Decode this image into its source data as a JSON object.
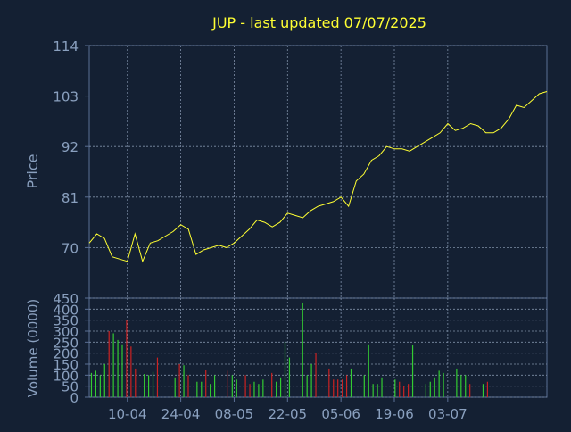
{
  "chart_data": [
    {
      "type": "line",
      "title": "JUP - last updated 07/07/2025",
      "ylabel": "Price",
      "ylim": [
        59,
        114
      ],
      "yticks": [
        70,
        81,
        92,
        103,
        114
      ],
      "grid": true,
      "line_color": "#ffff33",
      "x": [
        0,
        2,
        4,
        6,
        8,
        10,
        12,
        14,
        16,
        18,
        20,
        22,
        24,
        26,
        28,
        30,
        32,
        34,
        36,
        38,
        40,
        42,
        44,
        46,
        48,
        50,
        52,
        54,
        56,
        58,
        60,
        62,
        64,
        66,
        68,
        70,
        72,
        74,
        76,
        78,
        80,
        82,
        84,
        86,
        88,
        90,
        92,
        94,
        96,
        98,
        100,
        102,
        104,
        106,
        108,
        110,
        112,
        114,
        116,
        118,
        120
      ],
      "values": [
        71,
        73,
        72,
        68,
        67.5,
        67,
        73,
        67,
        71,
        71.5,
        72.5,
        73.5,
        75,
        74,
        68.5,
        69.5,
        70,
        70.5,
        70,
        71,
        72.5,
        74,
        76,
        75.5,
        74.5,
        75.5,
        77.5,
        77,
        76.5,
        78,
        79,
        79.5,
        80,
        81,
        79,
        84.5,
        86,
        89,
        90,
        92,
        91.5,
        91.5,
        91,
        92,
        93,
        94,
        95,
        97,
        95.5,
        96,
        97,
        96.5,
        95,
        95,
        96,
        98,
        101,
        100.5,
        102,
        103.5,
        104
      ],
      "x_tick_labels": [
        "10-04",
        "24-04",
        "08-05",
        "22-05",
        "05-06",
        "19-06",
        "03-07"
      ],
      "x_tick_positions": [
        10,
        24,
        38,
        52,
        66,
        80,
        94
      ]
    },
    {
      "type": "bar",
      "ylabel": "Volume (0000)",
      "ylim": [
        0,
        450
      ],
      "yticks": [
        0,
        50,
        100,
        150,
        200,
        250,
        300,
        350,
        400,
        450
      ],
      "grid": true,
      "up_color": "#33cc33",
      "down_color": "#cc2222",
      "x": [
        0,
        1,
        2,
        3,
        4,
        5,
        6,
        7,
        8,
        9,
        10,
        11,
        12,
        13,
        14,
        15,
        16,
        17,
        18,
        19,
        20,
        21,
        22,
        23,
        24,
        25,
        26,
        27,
        28,
        29,
        30,
        31,
        32,
        33,
        34,
        35,
        36,
        37,
        38,
        39,
        40,
        41,
        42,
        43,
        44,
        45,
        46,
        47,
        48,
        49,
        50,
        51,
        52,
        53,
        54,
        55,
        56,
        57,
        58,
        59,
        60,
        61,
        62,
        63,
        64,
        65,
        66,
        67,
        68,
        69,
        70,
        71,
        72,
        73,
        74,
        75,
        76,
        77,
        78,
        79,
        80,
        81,
        82,
        83,
        84,
        85,
        86,
        87,
        88,
        89,
        90,
        91,
        92,
        93,
        94,
        95,
        96,
        97,
        98,
        99,
        100,
        101,
        102,
        103
      ],
      "values": [
        110,
        120,
        100,
        150,
        300,
        290,
        260,
        240,
        350,
        230,
        130,
        0,
        105,
        100,
        115,
        180,
        0,
        0,
        0,
        90,
        150,
        145,
        100,
        0,
        70,
        70,
        125,
        60,
        100,
        0,
        0,
        120,
        100,
        80,
        0,
        100,
        60,
        70,
        60,
        80,
        0,
        110,
        70,
        90,
        250,
        180,
        0,
        0,
        430,
        100,
        150,
        200,
        0,
        0,
        130,
        80,
        80,
        80,
        100,
        130,
        0,
        0,
        100,
        240,
        60,
        60,
        90,
        0,
        0,
        80,
        70,
        50,
        60,
        235,
        0,
        0,
        60,
        70,
        90,
        120,
        110,
        0,
        0,
        130,
        100,
        100,
        60,
        0,
        0,
        60,
        70,
        0,
        0,
        0,
        0,
        0,
        0,
        0,
        0,
        0,
        0,
        0,
        0,
        0
      ],
      "colors": [
        "up",
        "up",
        "up",
        "up",
        "down",
        "up",
        "up",
        "up",
        "down",
        "down",
        "down",
        "up",
        "up",
        "up",
        "up",
        "down",
        "up",
        "up",
        "up",
        "up",
        "down",
        "up",
        "down",
        "up",
        "up",
        "up",
        "down",
        "up",
        "up",
        "up",
        "up",
        "down",
        "up",
        "up",
        "up",
        "down",
        "down",
        "up",
        "up",
        "up",
        "up",
        "down",
        "up",
        "up",
        "up",
        "up",
        "up",
        "up",
        "up",
        "up",
        "up",
        "down",
        "up",
        "up",
        "down",
        "down",
        "down",
        "down",
        "down",
        "up",
        "up",
        "up",
        "up",
        "up",
        "up",
        "up",
        "up",
        "up",
        "up",
        "up",
        "down",
        "down",
        "down",
        "up",
        "up",
        "up",
        "up",
        "up",
        "up",
        "up",
        "up",
        "up",
        "up",
        "up",
        "up",
        "up",
        "down",
        "up",
        "up",
        "up",
        "down",
        "up",
        "up",
        "up",
        "up",
        "up",
        "up",
        "up",
        "up",
        "up",
        "up",
        "up",
        "up",
        "up"
      ],
      "x_tick_labels": [
        "10-04",
        "24-04",
        "08-05",
        "22-05",
        "05-06",
        "19-06",
        "03-07"
      ]
    }
  ]
}
